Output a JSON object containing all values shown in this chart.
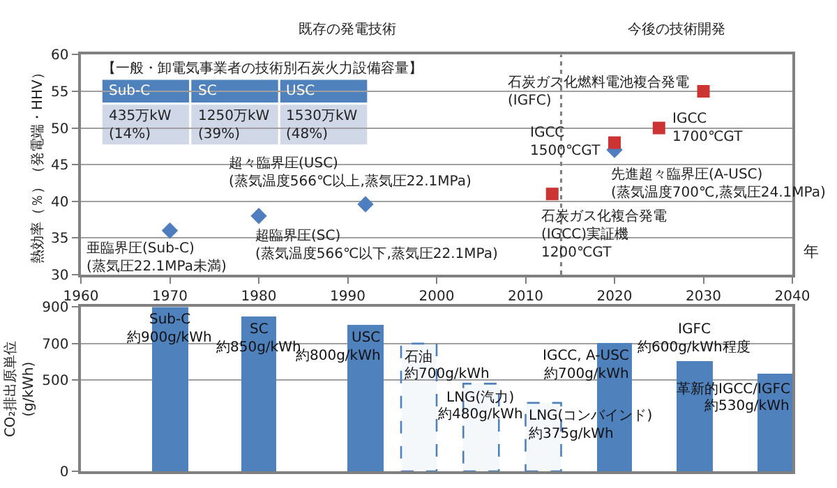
{
  "chart_data": [
    {
      "type": "scatter",
      "xlabel": "年",
      "ylabel": "熱効率（％）（発電端・HHV）",
      "xlim": [
        1960,
        2040
      ],
      "xticks": [
        1960,
        1970,
        1980,
        1990,
        2000,
        2010,
        2020,
        2030,
        2040
      ],
      "ylim": [
        30,
        60
      ],
      "yticks": [
        30,
        35,
        40,
        45,
        50,
        55,
        60
      ],
      "grid": "y",
      "series": [
        {
          "color": "#4f7ec0",
          "marker": "diamond",
          "x": [
            1970,
            1980,
            1992,
            2020
          ],
          "values": [
            36,
            38,
            39.6,
            47
          ]
        },
        {
          "color": "#cc3333",
          "marker": "square",
          "x": [
            2013,
            2020,
            2025,
            2030
          ],
          "values": [
            41,
            48,
            50,
            55
          ]
        }
      ],
      "ref_lines": [
        {
          "axis": "x",
          "value": 2014,
          "line_style": "dotted",
          "color": "#808080"
        }
      ],
      "annotations": [
        "既存の発電技術",
        "今後の技術開発",
        "【一般・卸電気事業者の技術別石炭火力設備容量】",
        "Sub-C",
        "SC",
        "USC",
        "435万kW\n(14%)",
        "1250万kW\n(39%)",
        "1530万kW\n(48%)",
        {
          "text": "亜臨界圧(Sub-C)\n(蒸気圧22.1MPa未満)",
          "x": 1970,
          "y": 36
        },
        {
          "text": "超臨界圧(SC)\n(蒸気温度566℃以下,蒸気圧22.1MPa)",
          "x": 1980,
          "y": 38
        },
        {
          "text": "超々臨界圧(USC)\n(蒸気温度566℃以上,蒸気圧22.1MPa)",
          "x": 1992,
          "y": 39.6
        },
        {
          "text": "IGCC\n1500℃GT",
          "x": 2020,
          "y": 48
        },
        {
          "text": "IGCC\n1700℃GT",
          "x": 2025,
          "y": 50
        },
        {
          "text": "石炭ガス化燃料電池複合発電\n(IGFC)",
          "x": 2030,
          "y": 55
        },
        {
          "text": "先進超々臨界圧(A-USC)\n(蒸気温度700℃,蒸気圧24.1MPa)",
          "x": 2020,
          "y": 47
        },
        {
          "text": "石炭ガス化複合発電\n(IGCC)実証機\n1200℃GT",
          "x": 2013,
          "y": 41
        }
      ]
    },
    {
      "type": "bar",
      "ylabel": "CO₂排出原単位\n(g/kWh)",
      "xlim": [
        1960,
        2040
      ],
      "ylim": [
        0,
        900
      ],
      "yticks": [
        0,
        500,
        700,
        900
      ],
      "grid": "y",
      "tick_labels": "y",
      "series": [
        {
          "color": "#4f81bd",
          "x": [
            1970,
            1980,
            1992,
            2020,
            2029,
            2038
          ],
          "values": [
            900,
            850,
            800,
            700,
            600,
            530
          ],
          "value_labels": [
            "約900g/kWh",
            "約850g/kWh",
            "約800g/kWh",
            "約700g/kWh",
            "約600g/kWh程度",
            "約530g/kWh"
          ]
        },
        {
          "color": "#4f81bd",
          "line_style": "dashed",
          "x": [
            1998,
            2005,
            2012
          ],
          "values": [
            700,
            480,
            375
          ],
          "value_labels": [
            "約700g/kWh",
            "約480g/kWh",
            "約375g/kWh"
          ]
        }
      ],
      "annotations": [
        {
          "text": "Sub-C",
          "x": 1970,
          "y": 900
        },
        {
          "text": "SC",
          "x": 1980,
          "y": 850
        },
        {
          "text": "USC",
          "x": 1992,
          "y": 800
        },
        {
          "text": "IGCC, A-USC",
          "x": 2020,
          "y": 700
        },
        {
          "text": "IGFC",
          "x": 2029,
          "y": 600
        },
        {
          "text": "革新的IGCC/IGFC",
          "x": 2038,
          "y": 530
        },
        {
          "text": "石油",
          "x": 1998,
          "y": 700
        },
        {
          "text": "LNG(汽力)",
          "x": 2005,
          "y": 480
        },
        {
          "text": "LNG(コンバインド)",
          "x": 2012,
          "y": 375
        }
      ]
    }
  ]
}
